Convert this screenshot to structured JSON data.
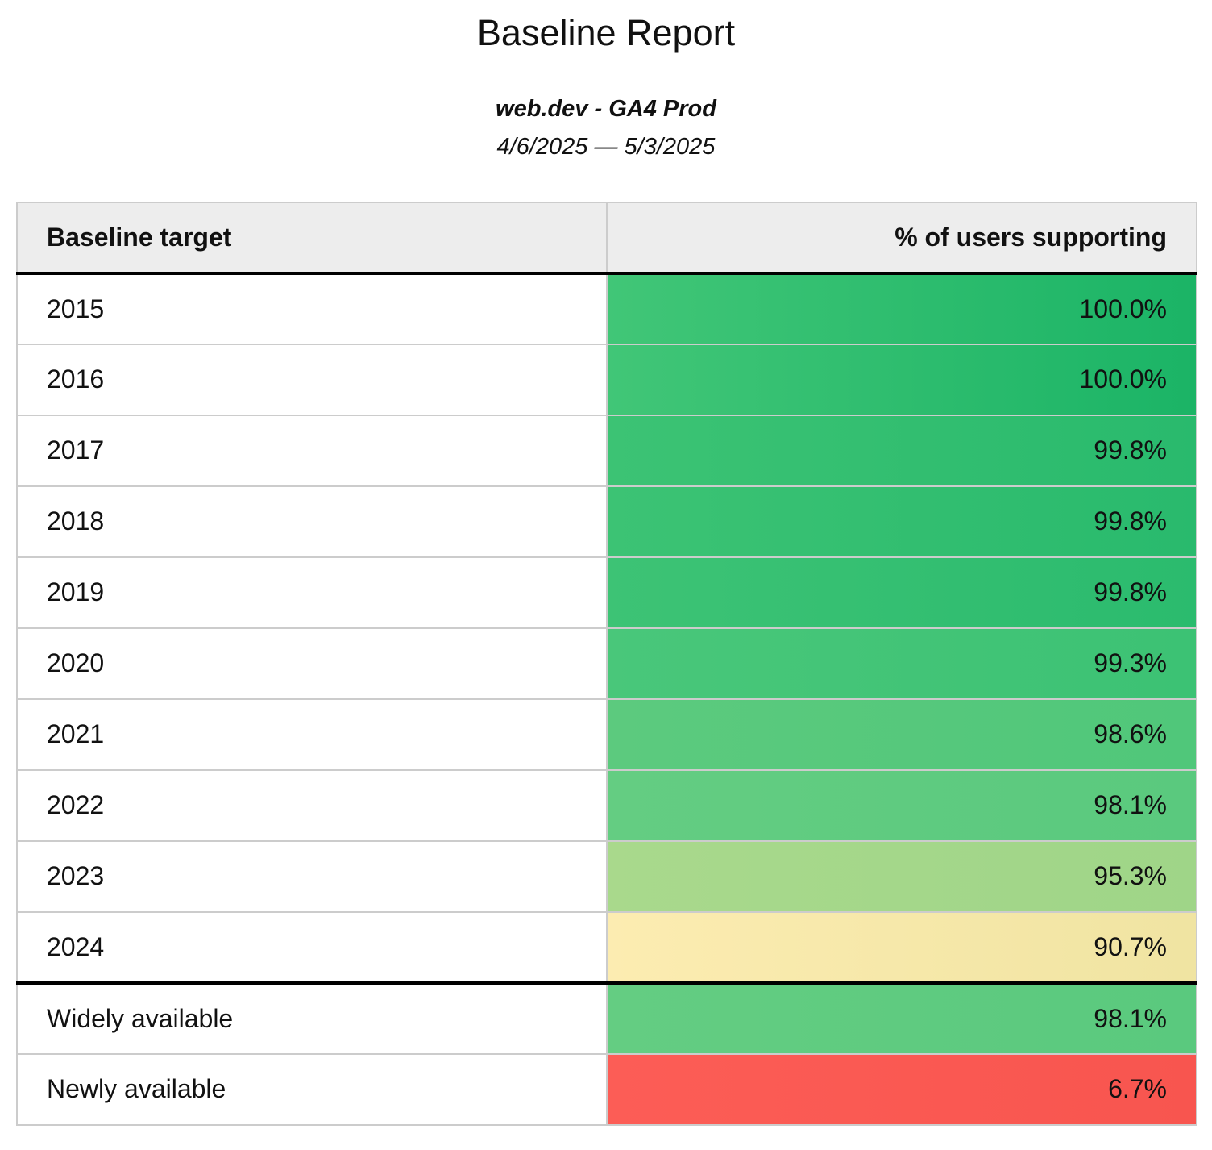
{
  "report": {
    "title": "Baseline Report",
    "subtitle": "web.dev - GA4 Prod",
    "date_range": "4/6/2025 — 5/3/2025"
  },
  "table": {
    "columns": [
      "Baseline target",
      "% of users supporting"
    ],
    "header_background": "#ededed",
    "grid_color": "#cccccc",
    "divider_color": "#000000",
    "rows": [
      {
        "label": "2015",
        "value": "100.0%",
        "color_left": "#41c677",
        "color_right": "#1bb466",
        "divider_above": false
      },
      {
        "label": "2016",
        "value": "100.0%",
        "color_left": "#41c677",
        "color_right": "#1bb466",
        "divider_above": false
      },
      {
        "label": "2017",
        "value": "99.8%",
        "color_left": "#3cc374",
        "color_right": "#29ba6d",
        "divider_above": false
      },
      {
        "label": "2018",
        "value": "99.8%",
        "color_left": "#3cc374",
        "color_right": "#29ba6d",
        "divider_above": false
      },
      {
        "label": "2019",
        "value": "99.8%",
        "color_left": "#3dc375",
        "color_right": "#2bbb6e",
        "divider_above": false
      },
      {
        "label": "2020",
        "value": "99.3%",
        "color_left": "#49c77a",
        "color_right": "#3cc274",
        "divider_above": false
      },
      {
        "label": "2021",
        "value": "98.6%",
        "color_left": "#5cca7e",
        "color_right": "#50c77a",
        "divider_above": false
      },
      {
        "label": "2022",
        "value": "98.1%",
        "color_left": "#64cd82",
        "color_right": "#5ac97e",
        "divider_above": false
      },
      {
        "label": "2023",
        "value": "95.3%",
        "color_left": "#a9d98c",
        "color_right": "#9fd588",
        "divider_above": false
      },
      {
        "label": "2024",
        "value": "90.7%",
        "color_left": "#fcecb1",
        "color_right": "#f0e4a2",
        "divider_above": false
      },
      {
        "label": "Widely available",
        "value": "98.1%",
        "color_left": "#64cd82",
        "color_right": "#5ac97e",
        "divider_above": true
      },
      {
        "label": "Newly available",
        "value": "6.7%",
        "color_left": "#fc5d56",
        "color_right": "#f8554f",
        "divider_above": false
      }
    ]
  },
  "chart_data": {
    "type": "table",
    "title": "Baseline Report",
    "subtitle": "web.dev - GA4 Prod",
    "date_range": "4/6/2025 — 5/3/2025",
    "columns": [
      "Baseline target",
      "% of users supporting"
    ],
    "rows": [
      [
        "2015",
        100.0
      ],
      [
        "2016",
        100.0
      ],
      [
        "2017",
        99.8
      ],
      [
        "2018",
        99.8
      ],
      [
        "2019",
        99.8
      ],
      [
        "2020",
        99.3
      ],
      [
        "2021",
        98.6
      ],
      [
        "2022",
        98.1
      ],
      [
        "2023",
        95.3
      ],
      [
        "2024",
        90.7
      ],
      [
        "Widely available",
        98.1
      ],
      [
        "Newly available",
        6.7
      ]
    ],
    "value_unit": "%",
    "value_range": [
      0,
      100
    ],
    "color_scale": {
      "high": "#1bb466",
      "mid": "#fcecb1",
      "low": "#fc5d56"
    }
  }
}
